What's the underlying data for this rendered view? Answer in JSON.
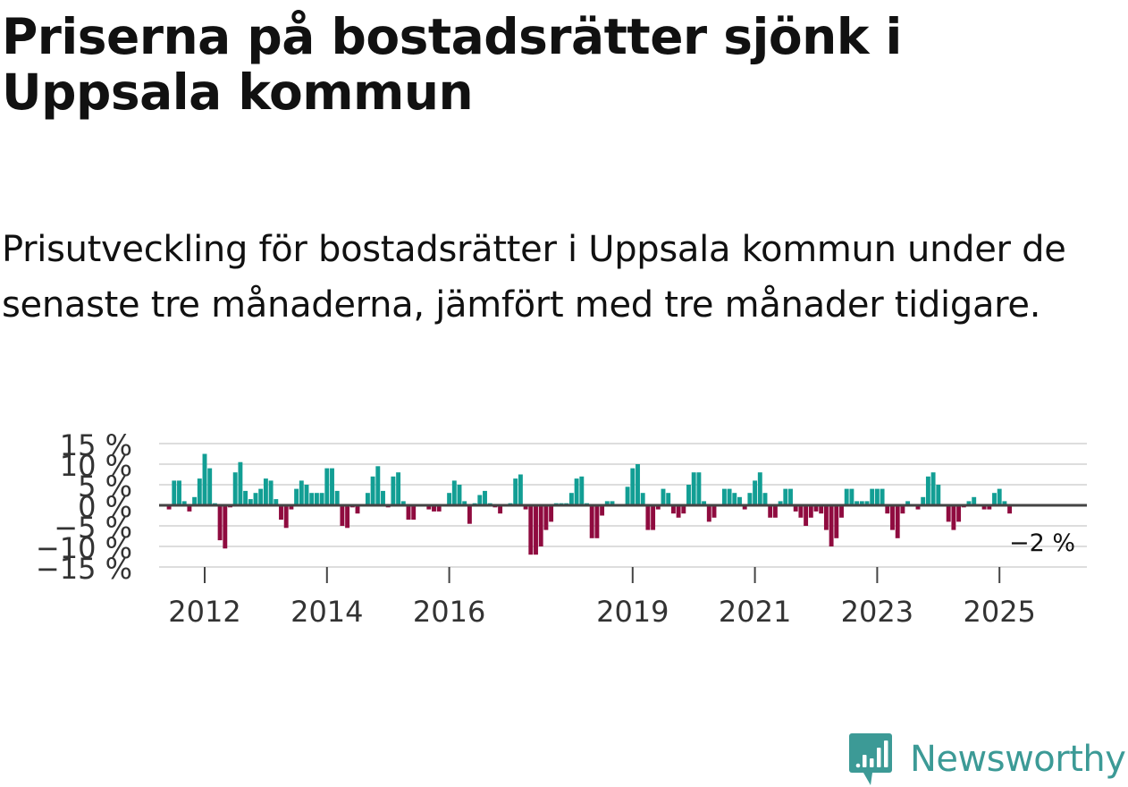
{
  "title": "Priserna på bostadsrätter sjönk i Uppsala kommun",
  "subtitle": "Prisutveckling för bostadsrätter i Uppsala kommun under de senaste tre månaderna, jämfört med tre månader tidigare.",
  "brand": {
    "name": "Newsworthy",
    "color": "#3c9a96"
  },
  "colors": {
    "positive": "#129e94",
    "negative": "#8f0b3f",
    "zero_line": "#444444",
    "grid": "#dddddd",
    "tick_text": "#333333"
  },
  "chart_data": {
    "type": "bar",
    "ylim": [
      -15,
      15
    ],
    "y_ticks": [
      {
        "value": 15,
        "label": "15 %"
      },
      {
        "value": 10,
        "label": "10 %"
      },
      {
        "value": 5,
        "label": "5 %"
      },
      {
        "value": 0,
        "label": "0 %"
      },
      {
        "value": -5,
        "label": "−5 %"
      },
      {
        "value": -10,
        "label": "−10 %"
      },
      {
        "value": -15,
        "label": "−15 %"
      }
    ],
    "x_ticks": [
      {
        "year": 2012,
        "label": "2012"
      },
      {
        "year": 2014,
        "label": "2014"
      },
      {
        "year": 2016,
        "label": "2016"
      },
      {
        "year": 2019,
        "label": "2019"
      },
      {
        "year": 2021,
        "label": "2021"
      },
      {
        "year": 2023,
        "label": "2023"
      },
      {
        "year": 2025,
        "label": "2025"
      }
    ],
    "start": "2011-06",
    "frequency": "monthly",
    "values": [
      -1,
      6,
      6,
      1,
      -1.5,
      2,
      6.5,
      12.5,
      9,
      0.5,
      -8.5,
      -10.5,
      -0.5,
      8,
      10.5,
      3.5,
      1.5,
      3,
      4,
      6.5,
      6,
      1.5,
      -3.5,
      -5.5,
      -1,
      4,
      6,
      5,
      3,
      3,
      3,
      9,
      9,
      3.5,
      -5,
      -5.5,
      -0.5,
      -2,
      0,
      3,
      7,
      9.5,
      3.5,
      -0.5,
      7,
      8,
      1,
      -3.5,
      -3.5,
      0,
      0,
      -1,
      -1.5,
      -1.5,
      0,
      3,
      6,
      5,
      1,
      -4.5,
      0.5,
      2.5,
      3.5,
      0.5,
      -0.5,
      -2,
      0,
      0.5,
      6.5,
      7.5,
      -1,
      -12,
      -12,
      -10,
      -6,
      -4,
      0.5,
      0.5,
      0.5,
      3,
      6.5,
      7,
      0.5,
      -8,
      -8,
      -2.5,
      1,
      1,
      0,
      0,
      4.5,
      9,
      10,
      3,
      -6,
      -6,
      -1,
      4,
      3,
      -2,
      -3,
      -2,
      5,
      8,
      8,
      1,
      -4,
      -3,
      0,
      4,
      4,
      3,
      2,
      -1,
      3,
      6,
      8,
      3,
      -3,
      -3,
      1,
      4,
      4,
      -1.5,
      -3,
      -5,
      -3,
      -1.5,
      -2,
      -6,
      -10,
      -8,
      -3,
      4,
      4,
      1,
      1,
      1,
      4,
      4,
      4,
      -2,
      -6,
      -8,
      -2,
      1,
      0,
      -1,
      2,
      7,
      8,
      5,
      0,
      -4,
      -6,
      -4,
      -0.5,
      1,
      2,
      0,
      -1,
      -1,
      3,
      4,
      1,
      -2
    ],
    "last_label": "−2 %"
  }
}
